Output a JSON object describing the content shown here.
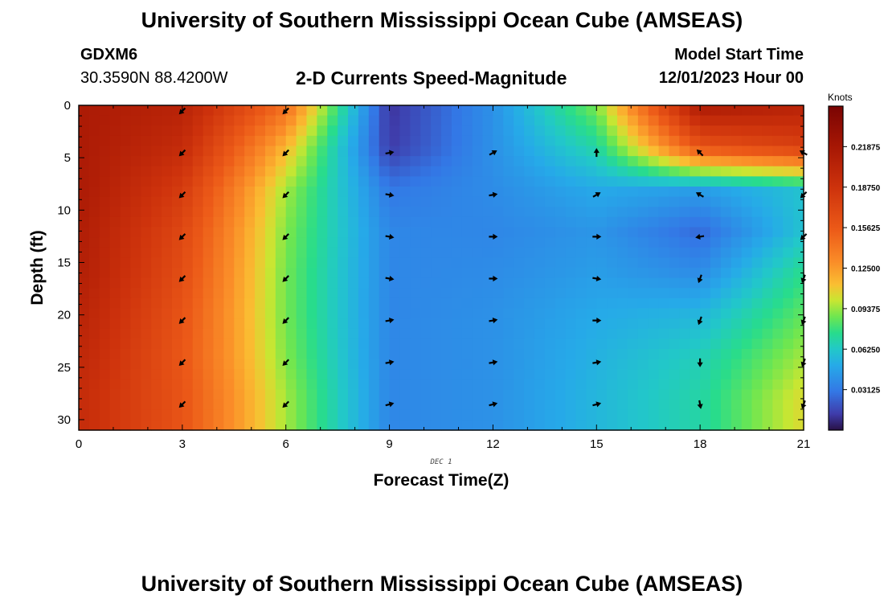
{
  "header": {
    "title": "University of Southern Mississippi Ocean Cube (AMSEAS)",
    "station": "GDXM6",
    "coords": "30.3590N  88.4200W",
    "subtitle": "2-D Currents Speed-Magnitude",
    "start_label": "Model Start Time",
    "start_value": "12/01/2023 Hour 00"
  },
  "footer": {
    "title": "University of Southern Mississippi Ocean Cube (AMSEAS)"
  },
  "chart_data": {
    "type": "heatmap",
    "title": "2-D Currents Speed-Magnitude",
    "xlabel": "Forecast Time(Z)",
    "ylabel": "Depth (ft)",
    "date_label": "DEC 1",
    "xlim": [
      0,
      21
    ],
    "ylim": [
      31,
      0
    ],
    "xticks": [
      0,
      3,
      6,
      9,
      12,
      15,
      18,
      21
    ],
    "yticks": [
      0,
      5,
      10,
      15,
      20,
      25,
      30
    ],
    "colorbar": {
      "label": "Knots",
      "range": [
        0.0,
        0.25
      ],
      "ticks": [
        "0.21875",
        "0.18750",
        "0.15625",
        "0.12500",
        "0.09375",
        "0.06250",
        "0.03125"
      ],
      "tick_values": [
        0.21875,
        0.1875,
        0.15625,
        0.125,
        0.09375,
        0.0625,
        0.03125
      ]
    },
    "speed_knots": {
      "times": [
        0,
        3,
        6,
        9,
        12,
        15,
        18,
        21
      ],
      "depths": [
        0,
        4,
        8,
        12,
        16,
        20,
        24,
        28
      ],
      "values": [
        [
          0.215,
          0.205,
          0.145,
          0.01,
          0.04,
          0.09,
          0.215,
          0.205
        ],
        [
          0.215,
          0.195,
          0.115,
          0.012,
          0.04,
          0.07,
          0.16,
          0.175
        ],
        [
          0.215,
          0.18,
          0.095,
          0.03,
          0.038,
          0.05,
          0.045,
          0.06
        ],
        [
          0.212,
          0.17,
          0.09,
          0.036,
          0.036,
          0.042,
          0.026,
          0.06
        ],
        [
          0.21,
          0.165,
          0.088,
          0.036,
          0.038,
          0.045,
          0.038,
          0.075
        ],
        [
          0.205,
          0.16,
          0.088,
          0.036,
          0.04,
          0.05,
          0.055,
          0.085
        ],
        [
          0.2,
          0.158,
          0.09,
          0.036,
          0.04,
          0.053,
          0.066,
          0.095
        ],
        [
          0.195,
          0.16,
          0.095,
          0.036,
          0.04,
          0.055,
          0.07,
          0.105
        ]
      ]
    },
    "direction_deg": {
      "times": [
        3,
        6,
        9,
        12,
        15,
        18,
        21
      ],
      "depths": [
        0,
        4,
        8,
        12,
        16,
        20,
        24,
        28
      ],
      "values": [
        [
          225,
          225,
          null,
          null,
          null,
          null,
          null
        ],
        [
          225,
          225,
          80,
          60,
          0,
          315,
          300
        ],
        [
          225,
          225,
          100,
          80,
          60,
          300,
          225
        ],
        [
          225,
          225,
          100,
          90,
          90,
          260,
          225
        ],
        [
          225,
          225,
          100,
          90,
          100,
          200,
          200
        ],
        [
          225,
          225,
          80,
          80,
          90,
          200,
          200
        ],
        [
          225,
          225,
          80,
          80,
          80,
          180,
          200
        ],
        [
          225,
          225,
          75,
          75,
          75,
          170,
          200
        ]
      ]
    }
  }
}
